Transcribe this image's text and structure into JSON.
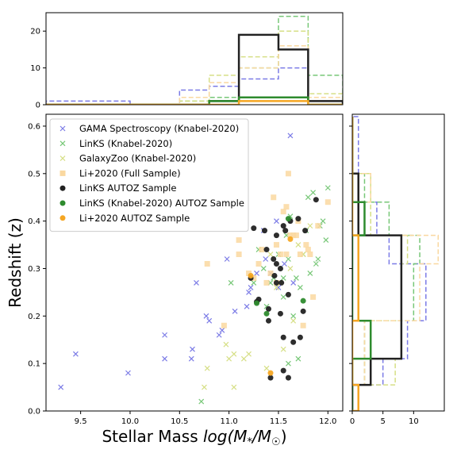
{
  "chart_data": [
    {
      "type": "scatter",
      "xlabel": "Stellar Mass log(M*/M☉)",
      "ylabel": "Redshift (z)",
      "xlim": [
        9.15,
        12.15
      ],
      "ylim": [
        0.0,
        0.625
      ],
      "xticks": [
        "9.5",
        "10.0",
        "10.5",
        "11.0",
        "11.5",
        "12.0"
      ],
      "yticks": [
        "0.0",
        "0.1",
        "0.2",
        "0.3",
        "0.4",
        "0.5",
        "0.6"
      ],
      "legend_position": "top-left",
      "series": [
        {
          "name": "GAMA Spectroscopy (Knabel-2020)",
          "marker": "x",
          "color": "#7b7be6",
          "points": [
            [
              9.3,
              0.05
            ],
            [
              9.45,
              0.12
            ],
            [
              9.98,
              0.08
            ],
            [
              10.35,
              0.16
            ],
            [
              10.35,
              0.11
            ],
            [
              10.62,
              0.11
            ],
            [
              10.63,
              0.13
            ],
            [
              10.67,
              0.27
            ],
            [
              10.77,
              0.2
            ],
            [
              10.8,
              0.19
            ],
            [
              10.9,
              0.16
            ],
            [
              10.93,
              0.17
            ],
            [
              10.98,
              0.32
            ],
            [
              11.06,
              0.21
            ],
            [
              11.18,
              0.22
            ],
            [
              11.2,
              0.25
            ],
            [
              11.22,
              0.26
            ],
            [
              11.28,
              0.29
            ],
            [
              11.35,
              0.38
            ],
            [
              11.37,
              0.32
            ],
            [
              11.42,
              0.29
            ],
            [
              11.48,
              0.4
            ],
            [
              11.5,
              0.26
            ],
            [
              11.56,
              0.31
            ],
            [
              11.62,
              0.58
            ],
            [
              11.65,
              0.27
            ]
          ]
        },
        {
          "name": "LinKS (Knabel-2020)",
          "marker": "x",
          "color": "#77c777",
          "points": [
            [
              10.72,
              0.02
            ],
            [
              11.02,
              0.27
            ],
            [
              11.25,
              0.27
            ],
            [
              11.3,
              0.34
            ],
            [
              11.35,
              0.3
            ],
            [
              11.38,
              0.22
            ],
            [
              11.42,
              0.27
            ],
            [
              11.45,
              0.28
            ],
            [
              11.5,
              0.33
            ],
            [
              11.55,
              0.28
            ],
            [
              11.58,
              0.37
            ],
            [
              11.6,
              0.32
            ],
            [
              11.62,
              0.41
            ],
            [
              11.65,
              0.2
            ],
            [
              11.68,
              0.28
            ],
            [
              11.72,
              0.26
            ],
            [
              11.75,
              0.33
            ],
            [
              11.78,
              0.38
            ],
            [
              11.8,
              0.45
            ],
            [
              11.82,
              0.29
            ],
            [
              11.85,
              0.46
            ],
            [
              11.88,
              0.31
            ],
            [
              11.9,
              0.32
            ],
            [
              11.92,
              0.39
            ],
            [
              11.95,
              0.4
            ],
            [
              11.98,
              0.36
            ],
            [
              12.0,
              0.47
            ],
            [
              11.7,
              0.11
            ],
            [
              11.6,
              0.1
            ],
            [
              11.55,
              0.24
            ]
          ]
        },
        {
          "name": "GalaxyZoo (Knabel-2020)",
          "marker": "x",
          "color": "#d6df86",
          "points": [
            [
              10.75,
              0.05
            ],
            [
              10.78,
              0.09
            ],
            [
              10.97,
              0.14
            ],
            [
              11.0,
              0.11
            ],
            [
              11.05,
              0.12
            ],
            [
              11.05,
              0.05
            ],
            [
              11.15,
              0.11
            ],
            [
              11.2,
              0.12
            ],
            [
              11.38,
              0.09
            ],
            [
              11.42,
              0.33
            ],
            [
              11.48,
              0.26
            ],
            [
              11.52,
              0.27
            ],
            [
              11.55,
              0.13
            ],
            [
              11.62,
              0.3
            ],
            [
              11.7,
              0.35
            ],
            [
              11.75,
              0.33
            ],
            [
              11.82,
              0.39
            ],
            [
              11.65,
              0.19
            ]
          ]
        },
        {
          "name": "Li+2020 (Full Sample)",
          "marker": "square",
          "color": "#fad8a0",
          "points": [
            [
              10.78,
              0.31
            ],
            [
              10.95,
              0.18
            ],
            [
              11.1,
              0.36
            ],
            [
              11.1,
              0.33
            ],
            [
              11.2,
              0.29
            ],
            [
              11.25,
              0.28
            ],
            [
              11.3,
              0.31
            ],
            [
              11.33,
              0.34
            ],
            [
              11.38,
              0.27
            ],
            [
              11.42,
              0.29
            ],
            [
              11.45,
              0.45
            ],
            [
              11.48,
              0.35
            ],
            [
              11.52,
              0.33
            ],
            [
              11.55,
              0.42
            ],
            [
              11.58,
              0.43
            ],
            [
              11.6,
              0.5
            ],
            [
              11.62,
              0.37
            ],
            [
              11.65,
              0.37
            ],
            [
              11.68,
              0.37
            ],
            [
              11.7,
              0.4
            ],
            [
              11.72,
              0.33
            ],
            [
              11.75,
              0.18
            ],
            [
              11.78,
              0.35
            ],
            [
              11.8,
              0.34
            ],
            [
              11.82,
              0.33
            ],
            [
              11.85,
              0.24
            ],
            [
              11.9,
              0.39
            ],
            [
              12.0,
              0.44
            ],
            [
              11.58,
              0.33
            ],
            [
              11.48,
              0.27
            ]
          ]
        },
        {
          "name": "LinKS AUTOZ Sample",
          "marker": "circle",
          "color": "#222222",
          "points": [
            [
              11.25,
              0.385
            ],
            [
              11.28,
              0.23
            ],
            [
              11.3,
              0.235
            ],
            [
              11.36,
              0.38
            ],
            [
              11.38,
              0.34
            ],
            [
              11.4,
              0.215
            ],
            [
              11.4,
              0.19
            ],
            [
              11.42,
              0.07
            ],
            [
              11.45,
              0.32
            ],
            [
              11.46,
              0.285
            ],
            [
              11.48,
              0.37
            ],
            [
              11.48,
              0.27
            ],
            [
              11.52,
              0.3
            ],
            [
              11.52,
              0.205
            ],
            [
              11.53,
              0.27
            ],
            [
              11.55,
              0.085
            ],
            [
              11.55,
              0.155
            ],
            [
              11.57,
              0.38
            ],
            [
              11.6,
              0.245
            ],
            [
              11.6,
              0.07
            ],
            [
              11.62,
              0.4
            ],
            [
              11.65,
              0.145
            ],
            [
              11.7,
              0.405
            ],
            [
              11.72,
              0.155
            ],
            [
              11.75,
              0.21
            ],
            [
              11.77,
              0.38
            ],
            [
              11.88,
              0.445
            ],
            [
              11.48,
              0.31
            ],
            [
              11.55,
              0.39
            ],
            [
              11.22,
              0.28
            ]
          ]
        },
        {
          "name": "LinKS (Knabel-2020) AUTOZ Sample",
          "marker": "circle",
          "color": "#2e8b2e",
          "points": [
            [
              11.28,
              0.227
            ],
            [
              11.38,
              0.205
            ],
            [
              11.6,
              0.405
            ],
            [
              11.75,
              0.232
            ]
          ]
        },
        {
          "name": "Li+2020 AUTOZ Sample",
          "marker": "circle",
          "color": "#f5a623",
          "points": [
            [
              11.22,
              0.285
            ],
            [
              11.42,
              0.08
            ],
            [
              11.62,
              0.362
            ]
          ]
        }
      ]
    },
    {
      "type": "histogram",
      "orientation": "vertical",
      "bins": [
        9.15,
        9.5,
        10.0,
        10.5,
        10.8,
        11.1,
        11.5,
        11.8,
        12.15
      ],
      "yticks": [
        "0",
        "10",
        "20"
      ],
      "ylim": [
        0,
        25
      ],
      "series": [
        {
          "name": "GAMA Spectroscopy (Knabel-2020)",
          "color": "#7b7be6",
          "style": "dashed",
          "counts": [
            1,
            1,
            0,
            4,
            5,
            7,
            10,
            1
          ]
        },
        {
          "name": "LinKS (Knabel-2020)",
          "color": "#77c777",
          "style": "dashed",
          "counts": [
            0,
            0,
            0,
            1,
            2,
            10,
            24,
            8
          ]
        },
        {
          "name": "GalaxyZoo (Knabel-2020)",
          "color": "#d6df86",
          "style": "dashed",
          "counts": [
            0,
            0,
            0,
            1,
            8,
            13,
            20,
            3
          ]
        },
        {
          "name": "Li+2020 (Full Sample)",
          "color": "#fad8a0",
          "style": "dashed",
          "counts": [
            0,
            0,
            0,
            2,
            6,
            10,
            16,
            2
          ]
        },
        {
          "name": "LinKS AUTOZ Sample",
          "color": "#222222",
          "style": "solid",
          "counts": [
            0,
            0,
            0,
            0,
            1,
            19,
            15,
            1
          ]
        },
        {
          "name": "LinKS (Knabel-2020) AUTOZ Sample",
          "color": "#2e8b2e",
          "style": "solid",
          "counts": [
            0,
            0,
            0,
            0,
            1,
            2,
            2,
            0
          ]
        },
        {
          "name": "Li+2020 AUTOZ Sample",
          "color": "#f5a623",
          "style": "solid",
          "counts": [
            0,
            0,
            0,
            0,
            0,
            1,
            1,
            0
          ]
        }
      ]
    },
    {
      "type": "histogram",
      "orientation": "horizontal",
      "bins": [
        0.0,
        0.055,
        0.11,
        0.19,
        0.31,
        0.37,
        0.44,
        0.5,
        0.62
      ],
      "xticks": [
        "0",
        "5",
        "10"
      ],
      "xlim": [
        0,
        15
      ],
      "series": [
        {
          "name": "GAMA Spectroscopy (Knabel-2020)",
          "color": "#7b7be6",
          "style": "dashed",
          "counts": [
            1,
            5,
            9,
            12,
            6,
            4,
            1,
            1
          ]
        },
        {
          "name": "LinKS (Knabel-2020)",
          "color": "#77c777",
          "style": "dashed",
          "counts": [
            1,
            2,
            2,
            10,
            11,
            6,
            2,
            0
          ]
        },
        {
          "name": "GalaxyZoo (Knabel-2020)",
          "color": "#d6df86",
          "style": "dashed",
          "counts": [
            1,
            7,
            3,
            8,
            9,
            3,
            3,
            0
          ]
        },
        {
          "name": "Li+2020 (Full Sample)",
          "color": "#fad8a0",
          "style": "dashed",
          "counts": [
            0,
            2,
            2,
            11,
            14,
            2,
            3,
            0
          ]
        },
        {
          "name": "LinKS AUTOZ Sample",
          "color": "#222222",
          "style": "solid",
          "counts": [
            0,
            3,
            8,
            8,
            8,
            1,
            1,
            0
          ]
        },
        {
          "name": "LinKS (Knabel-2020) AUTOZ Sample",
          "color": "#2e8b2e",
          "style": "solid",
          "counts": [
            0,
            0,
            3,
            0,
            0,
            2,
            0,
            0
          ]
        },
        {
          "name": "Li+2020 AUTOZ Sample",
          "color": "#f5a623",
          "style": "solid",
          "counts": [
            1,
            0,
            0,
            1,
            1,
            0,
            0,
            0
          ]
        }
      ]
    }
  ]
}
